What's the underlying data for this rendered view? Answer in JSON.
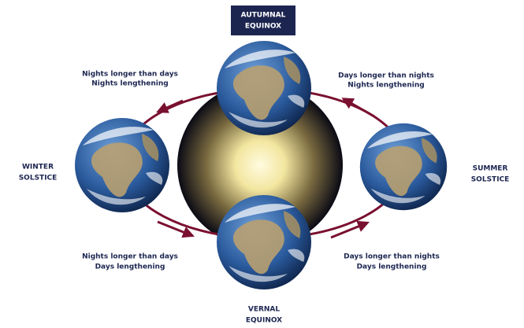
{
  "positions": [
    {
      "label": [
        "AUTUMNAL",
        "EQUINOX"
      ]
    },
    {
      "label": [
        "WINTER",
        "SOLSTICE"
      ]
    },
    {
      "label": [
        "SUMMER",
        "SOLSTICE"
      ]
    },
    {
      "label": [
        "VERNAL",
        "EQUINOX"
      ]
    }
  ],
  "transitions": [
    {
      "lines": [
        "Nights longer than days",
        "Nights lengthening"
      ]
    },
    {
      "lines": [
        "Days longer than nights",
        "Nights lengthening"
      ]
    },
    {
      "lines": [
        "Nights longer than days",
        "Days lengthening"
      ]
    },
    {
      "lines": [
        "Days longer than nights",
        "Days lengthening"
      ]
    }
  ]
}
